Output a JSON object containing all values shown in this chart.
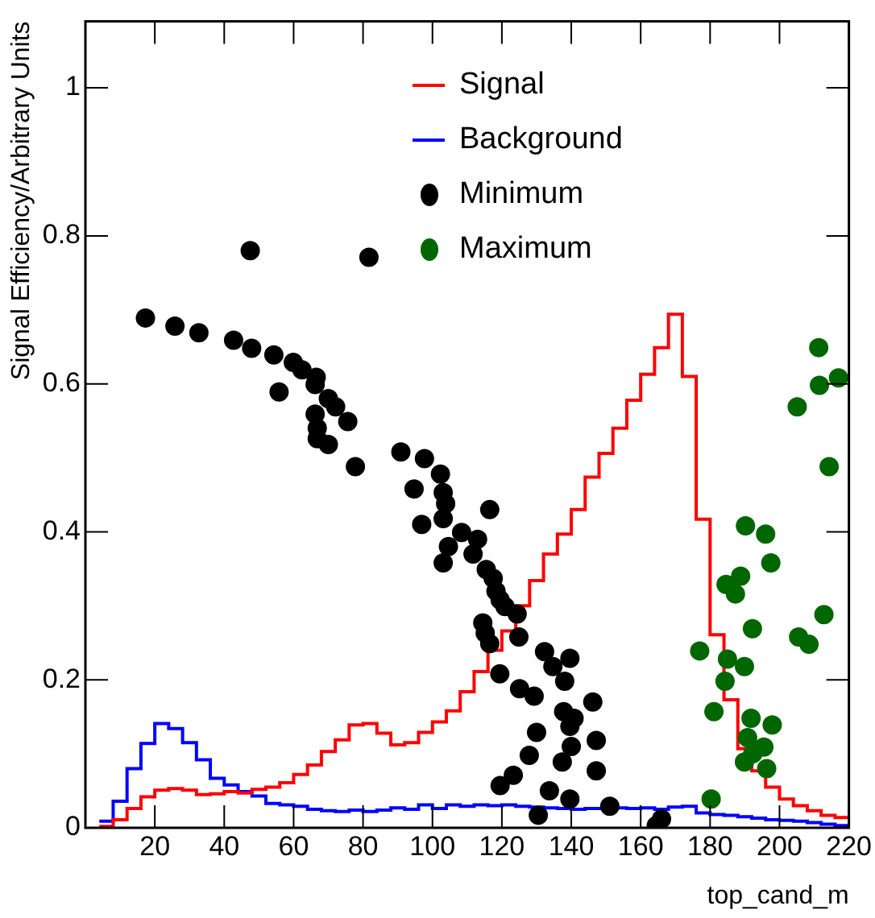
{
  "chart_data": {
    "type": "histogram",
    "xlabel": "top_cand_m",
    "ylabel": "Signal Efficiency/Arbitrary Units",
    "bins": [
      4,
      8,
      12,
      16,
      20,
      24,
      28,
      32,
      36,
      40,
      44,
      48,
      52,
      56,
      60,
      64,
      68,
      72,
      76,
      80,
      84,
      88,
      92,
      96,
      100,
      104,
      108,
      112,
      116,
      120,
      124,
      128,
      132,
      136,
      140,
      144,
      148,
      152,
      156,
      160,
      164,
      168,
      172,
      176,
      180,
      184,
      188,
      192,
      196,
      200,
      204,
      208,
      212,
      216,
      220
    ],
    "series": [
      {
        "name": "Signal",
        "color": "#ff0000",
        "values": [
          0.002,
          0.011,
          0.026,
          0.042,
          0.051,
          0.053,
          0.051,
          0.045,
          0.046,
          0.049,
          0.047,
          0.052,
          0.055,
          0.061,
          0.072,
          0.085,
          0.103,
          0.119,
          0.139,
          0.141,
          0.128,
          0.112,
          0.115,
          0.129,
          0.143,
          0.158,
          0.184,
          0.211,
          0.24,
          0.266,
          0.3,
          0.334,
          0.37,
          0.397,
          0.43,
          0.474,
          0.506,
          0.54,
          0.578,
          0.613,
          0.649,
          0.694,
          0.61,
          0.417,
          0.261,
          0.173,
          0.107,
          0.077,
          0.055,
          0.039,
          0.03,
          0.023,
          0.017,
          0.014
        ]
      },
      {
        "name": "Background",
        "color": "#0000ff",
        "values": [
          0.009,
          0.036,
          0.08,
          0.114,
          0.141,
          0.134,
          0.115,
          0.092,
          0.067,
          0.058,
          0.049,
          0.043,
          0.033,
          0.031,
          0.029,
          0.025,
          0.023,
          0.022,
          0.024,
          0.022,
          0.024,
          0.027,
          0.025,
          0.031,
          0.026,
          0.031,
          0.029,
          0.031,
          0.03,
          0.031,
          0.029,
          0.028,
          0.027,
          0.026,
          0.025,
          0.026,
          0.026,
          0.027,
          0.026,
          0.027,
          0.025,
          0.028,
          0.029,
          0.02,
          0.018,
          0.017,
          0.015,
          0.013,
          0.011,
          0.01,
          0.009,
          0.007,
          0.005,
          0.003
        ]
      },
      {
        "name": "Minimum",
        "type": "scatter",
        "color": "#000000",
        "x": [
          17.3,
          25.8,
          32.7,
          42.7,
          47.9,
          47.5,
          54.3,
          55.8,
          59.9,
          62.4,
          66.5,
          66.2,
          70.0,
          72.1,
          66.2,
          66.8,
          66.8,
          70.0,
          75.6,
          77.8,
          81.7,
          90.9,
          97.7,
          94.7,
          102.3,
          103.1,
          103.8,
          103.1,
          96.9,
          116.5,
          108.4,
          113.0,
          104.6,
          103.1,
          111.7,
          115.5,
          117.5,
          118.3,
          119.5,
          120.9,
          124.4,
          114.5,
          115.2,
          116.5,
          124.9,
          132.3,
          134.7,
          139.6,
          138.1,
          119.4,
          125.1,
          129.3,
          146.2,
          137.8,
          140.8,
          139.6,
          130.0,
          147.2,
          140.0,
          127.9,
          137.4,
          147.2,
          123.3,
          119.5,
          133.7,
          139.6,
          151.1,
          130.5,
          164.5,
          166.0
        ],
        "values": [
          0.689,
          0.678,
          0.669,
          0.659,
          0.648,
          0.78,
          0.639,
          0.589,
          0.629,
          0.619,
          0.609,
          0.599,
          0.58,
          0.569,
          0.559,
          0.54,
          0.526,
          0.518,
          0.549,
          0.488,
          0.771,
          0.508,
          0.499,
          0.458,
          0.478,
          0.453,
          0.438,
          0.418,
          0.41,
          0.43,
          0.399,
          0.39,
          0.38,
          0.358,
          0.37,
          0.349,
          0.337,
          0.32,
          0.308,
          0.299,
          0.289,
          0.277,
          0.263,
          0.249,
          0.258,
          0.238,
          0.218,
          0.229,
          0.198,
          0.208,
          0.188,
          0.178,
          0.17,
          0.157,
          0.148,
          0.137,
          0.129,
          0.118,
          0.11,
          0.098,
          0.089,
          0.077,
          0.071,
          0.057,
          0.05,
          0.039,
          0.029,
          0.017,
          0.003,
          0.012
        ]
      },
      {
        "name": "Maximum",
        "type": "scatter",
        "color": "#006600",
        "x": [
          211.3,
          217.0,
          211.5,
          205.1,
          214.3,
          190.2,
          196.0,
          197.5,
          184.6,
          188.8,
          187.3,
          212.8,
          192.2,
          205.5,
          208.5,
          177.0,
          185.0,
          189.9,
          184.3,
          181.1,
          191.8,
          197.9,
          190.8,
          195.5,
          192.3,
          189.9,
          196.3,
          180.3
        ],
        "values": [
          0.649,
          0.608,
          0.598,
          0.569,
          0.488,
          0.408,
          0.397,
          0.358,
          0.329,
          0.34,
          0.316,
          0.288,
          0.269,
          0.258,
          0.248,
          0.239,
          0.228,
          0.218,
          0.198,
          0.157,
          0.148,
          0.139,
          0.122,
          0.109,
          0.1,
          0.089,
          0.08,
          0.039
        ]
      }
    ],
    "marker": "circle",
    "xlim": [
      0,
      220
    ],
    "ylim": [
      0,
      1.09
    ],
    "xticks": [
      20,
      40,
      60,
      80,
      100,
      120,
      140,
      160,
      180,
      200,
      220
    ],
    "yticks": [
      0,
      0.2,
      0.4,
      0.6,
      0.8,
      1
    ],
    "legend": "top"
  }
}
